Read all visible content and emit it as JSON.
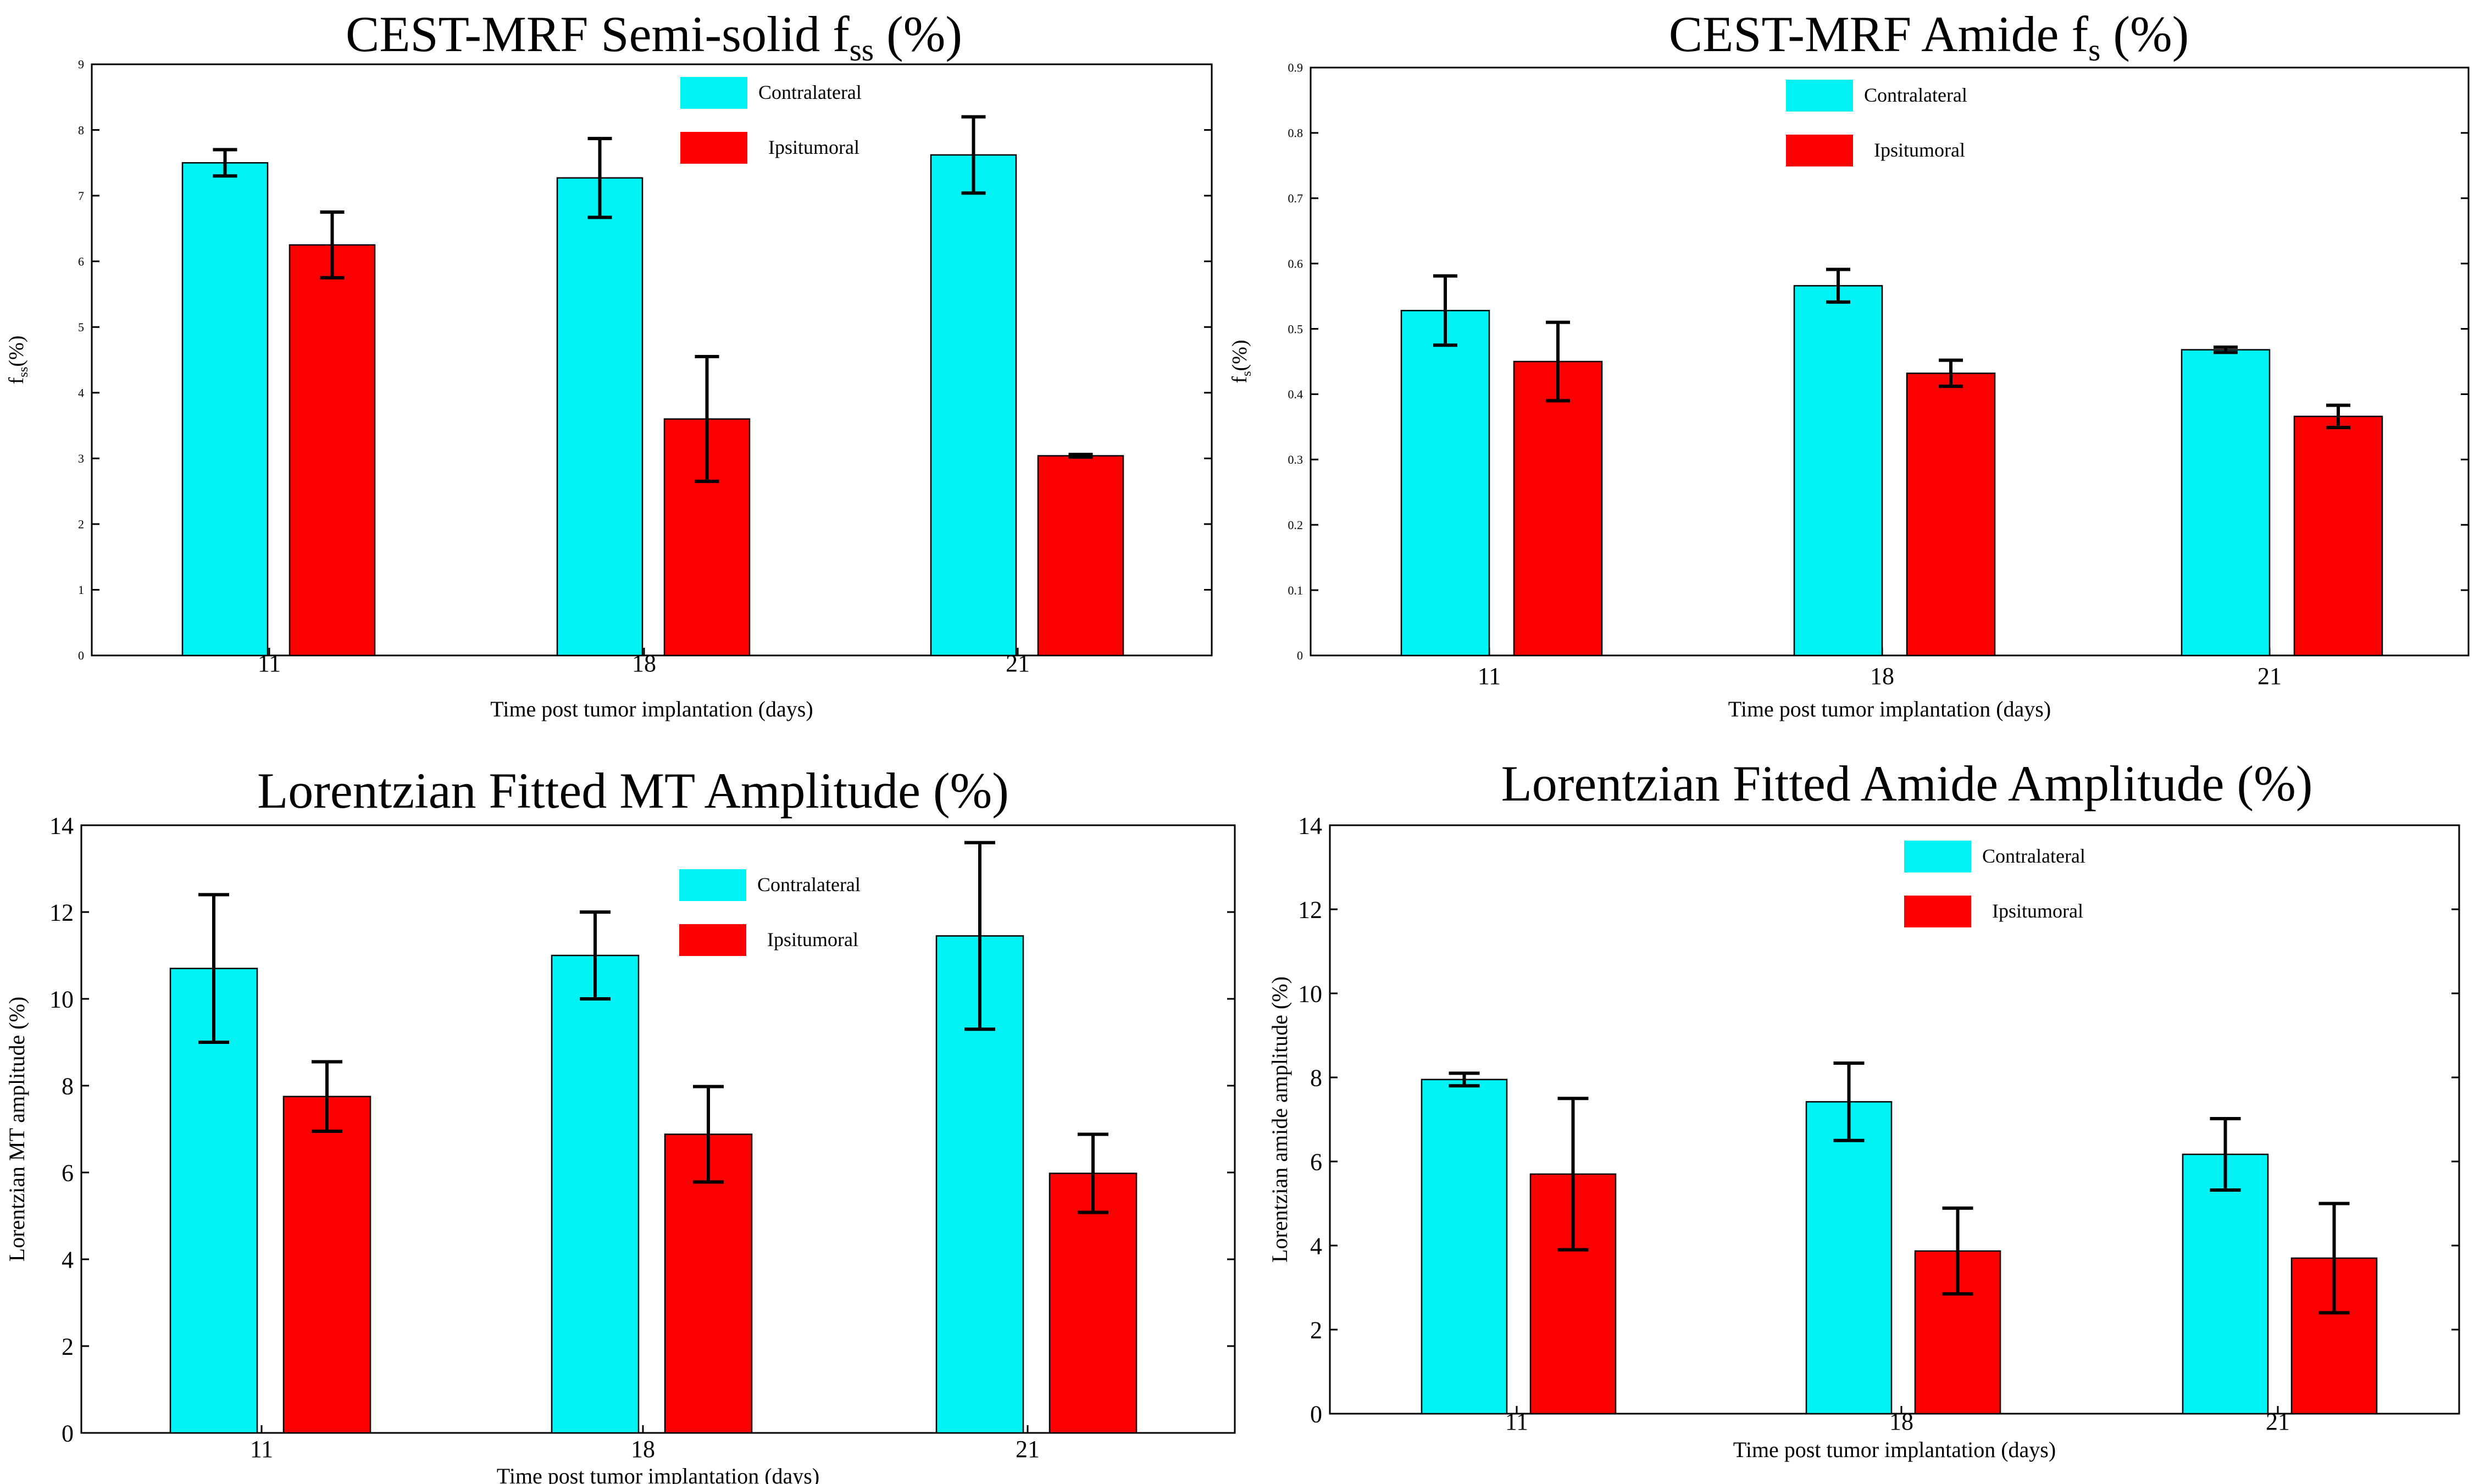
{
  "colors": {
    "contralateral": "#00f3f3",
    "ipsitumoral": "#fb0000",
    "axis": "#000000"
  },
  "chart_data": [
    {
      "type": "bar",
      "title": "CEST-MRF Semi-solid f",
      "title_sub": "ss",
      "title_suffix": " (%)",
      "ylabel": "f",
      "ylabel_sub": "ss",
      "ylabel_suffix": "(%)",
      "xlabel": "Time post tumor implantation (days)",
      "categories": [
        "11",
        "18",
        "21"
      ],
      "ylim": [
        0,
        9
      ],
      "yticks": [
        "0",
        "1",
        "2",
        "3",
        "4",
        "5",
        "6",
        "7",
        "8",
        "9"
      ],
      "legend": [
        "Contralateral",
        "Ipsitumoral"
      ],
      "series": [
        {
          "name": "Contralateral",
          "values": [
            7.5,
            7.27,
            7.62
          ],
          "errors": [
            0.2,
            0.6,
            0.58
          ]
        },
        {
          "name": "Ipsitumoral",
          "values": [
            6.25,
            3.6,
            3.04
          ],
          "errors": [
            0.5,
            0.95,
            0.02
          ]
        }
      ]
    },
    {
      "type": "bar",
      "title": "CEST-MRF Amide f",
      "title_sub": "s",
      "title_suffix": " (%)",
      "ylabel": "f",
      "ylabel_sub": "s",
      "ylabel_suffix": "(%)",
      "xlabel": "Time post tumor implantation (days)",
      "categories": [
        "11",
        "18",
        "21"
      ],
      "ylim": [
        0,
        0.9
      ],
      "yticks": [
        "0",
        "0.1",
        "0.2",
        "0.3",
        "0.4",
        "0.5",
        "0.6",
        "0.7",
        "0.8",
        "0.9"
      ],
      "legend": [
        "Contralateral",
        "Ipsitumoral"
      ],
      "series": [
        {
          "name": "Contralateral",
          "values": [
            0.528,
            0.566,
            0.468
          ],
          "errors": [
            0.053,
            0.025,
            0.004
          ]
        },
        {
          "name": "Ipsitumoral",
          "values": [
            0.45,
            0.432,
            0.366
          ],
          "errors": [
            0.06,
            0.02,
            0.017
          ]
        }
      ]
    },
    {
      "type": "bar",
      "title": "Lorentzian Fitted MT Amplitude (%)",
      "title_sub": "",
      "title_suffix": "",
      "ylabel": "Lorentzian MT amplitude (%)",
      "ylabel_sub": "",
      "ylabel_suffix": "",
      "xlabel": "Time post tumor implantation (days)",
      "categories": [
        "11",
        "18",
        "21"
      ],
      "ylim": [
        0,
        14
      ],
      "yticks": [
        "0",
        "2",
        "4",
        "6",
        "8",
        "10",
        "12",
        "14"
      ],
      "legend": [
        "Contralateral",
        "Ipsitumoral"
      ],
      "series": [
        {
          "name": "Contralateral",
          "values": [
            10.7,
            11.0,
            11.45
          ],
          "errors": [
            1.7,
            1.0,
            2.15
          ]
        },
        {
          "name": "Ipsitumoral",
          "values": [
            7.75,
            6.88,
            5.98
          ],
          "errors": [
            0.8,
            1.1,
            0.9
          ]
        }
      ]
    },
    {
      "type": "bar",
      "title": "Lorentzian Fitted Amide Amplitude (%)",
      "title_sub": "",
      "title_suffix": "",
      "ylabel": "Lorentzian amide amplitude (%)",
      "ylabel_sub": "",
      "ylabel_suffix": "",
      "xlabel": "Time post tumor implantation (days)",
      "categories": [
        "11",
        "18",
        "21"
      ],
      "ylim": [
        0,
        14
      ],
      "yticks": [
        "0",
        "2",
        "4",
        "6",
        "8",
        "10",
        "12",
        "14"
      ],
      "legend": [
        "Contralateral",
        "Ipsitumoral"
      ],
      "series": [
        {
          "name": "Contralateral",
          "values": [
            7.95,
            7.42,
            6.17
          ],
          "errors": [
            0.15,
            0.92,
            0.85
          ]
        },
        {
          "name": "Ipsitumoral",
          "values": [
            5.7,
            3.87,
            3.7
          ],
          "errors": [
            1.8,
            1.02,
            1.3
          ]
        }
      ]
    }
  ]
}
